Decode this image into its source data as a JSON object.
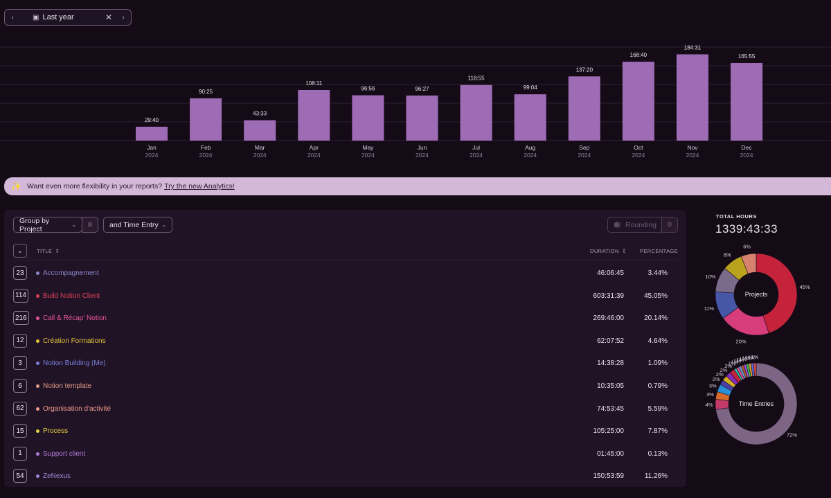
{
  "range_picker": {
    "prev_icon": "chevron-left-icon",
    "label": "Last year",
    "clear_icon": "close-icon",
    "next_icon": "chevron-right-icon"
  },
  "chart_data": {
    "type": "bar",
    "categories": [
      "Jan",
      "Feb",
      "Mar",
      "Apr",
      "May",
      "Jun",
      "Jul",
      "Aug",
      "Sep",
      "Oct",
      "Nov",
      "Dec"
    ],
    "years": [
      "2024",
      "2024",
      "2024",
      "2024",
      "2024",
      "2024",
      "2024",
      "2024",
      "2024",
      "2024",
      "2024",
      "2024"
    ],
    "value_labels": [
      "29:40",
      "90:25",
      "43:33",
      "108:11",
      "96:56",
      "96:27",
      "118:55",
      "99:04",
      "137:20",
      "168:40",
      "184:31",
      "165:55"
    ],
    "values": [
      29.67,
      90.42,
      43.55,
      108.18,
      96.93,
      96.45,
      118.92,
      99.07,
      137.33,
      168.67,
      184.52,
      165.92
    ],
    "ylim": [
      0,
      200
    ],
    "grid": true,
    "bar_color": "#9e6bb5"
  },
  "banner": {
    "icon": "sparkles-icon",
    "text": "Want even more flexibility in your reports?",
    "link": "Try the new Analytics!"
  },
  "controls": {
    "group_by": "Group by Project",
    "sub_group": "and Time Entry",
    "rounding": "Rounding"
  },
  "table": {
    "headers": {
      "title": "TITLE",
      "duration": "DURATION",
      "percentage": "PERCENTAGE"
    },
    "rows": [
      {
        "count": "23",
        "name": "Accompagnement",
        "duration": "46:06:45",
        "percentage": "3.44%",
        "color": "#8b86c9"
      },
      {
        "count": "114",
        "name": "Build Notion Client",
        "duration": "603:31:39",
        "percentage": "45.05%",
        "color": "#e0405a"
      },
      {
        "count": "216",
        "name": "Call & Récap' Notion",
        "duration": "269:46:00",
        "percentage": "20.14%",
        "color": "#e8559a"
      },
      {
        "count": "12",
        "name": "Création Formations",
        "duration": "62:07:52",
        "percentage": "4.64%",
        "color": "#e3c23a"
      },
      {
        "count": "3",
        "name": "Notion Building (Me)",
        "duration": "14:38:28",
        "percentage": "1.09%",
        "color": "#7b7fd9"
      },
      {
        "count": "6",
        "name": "Notion template",
        "duration": "10:35:05",
        "percentage": "0.79%",
        "color": "#e09a86"
      },
      {
        "count": "62",
        "name": "Organisation d'activité",
        "duration": "74:53:45",
        "percentage": "5.59%",
        "color": "#f09a8a"
      },
      {
        "count": "15",
        "name": "Process",
        "duration": "105:25:00",
        "percentage": "7.87%",
        "color": "#e6d040"
      },
      {
        "count": "1",
        "name": "Support client",
        "duration": "01:45:00",
        "percentage": "0.13%",
        "color": "#b07ad9"
      },
      {
        "count": "54",
        "name": "ZeNexus",
        "duration": "150:53:59",
        "percentage": "11.26%",
        "color": "#9a8ad6"
      }
    ]
  },
  "total": {
    "label": "TOTAL HOURS",
    "value": "1339:43:33"
  },
  "projects_donut": {
    "label": "Projects",
    "slices": [
      {
        "value": 45,
        "color": "#c4233b",
        "label": "45%"
      },
      {
        "value": 20,
        "color": "#d63d7a",
        "label": "20%"
      },
      {
        "value": 11,
        "color": "#4657a8",
        "label": "11%"
      },
      {
        "value": 10,
        "color": "#7a6b8a",
        "label": "10%"
      },
      {
        "value": 8,
        "color": "#b9a21e",
        "label": "8%"
      },
      {
        "value": 6,
        "color": "#d6816d",
        "label": "6%"
      }
    ]
  },
  "entries_donut": {
    "label": "Time Entries",
    "slices": [
      {
        "value": 72,
        "color": "#7d6585",
        "label": "72%"
      },
      {
        "value": 4,
        "color": "#c23a6a",
        "label": "4%"
      },
      {
        "value": 3,
        "color": "#d86a2a",
        "label": "3%"
      },
      {
        "value": 3,
        "color": "#2a8fd6",
        "label": "3%"
      },
      {
        "value": 2,
        "color": "#4a3fa8",
        "label": "2%"
      },
      {
        "value": 2,
        "color": "#d4b020",
        "label": "2%"
      },
      {
        "value": 2,
        "color": "#8a2ab8",
        "label": "2%"
      },
      {
        "value": 2,
        "color": "#c4233b",
        "label": "2%"
      },
      {
        "value": 1,
        "color": "#2ab8a0",
        "label": "1%"
      },
      {
        "value": 1,
        "color": "#e05090",
        "label": "1%"
      },
      {
        "value": 1,
        "color": "#6a9ad6",
        "label": "1%"
      },
      {
        "value": 1,
        "color": "#b85a2a",
        "label": "1%"
      },
      {
        "value": 1,
        "color": "#9a4ad6",
        "label": "1%"
      },
      {
        "value": 1,
        "color": "#3ab85a",
        "label": "1%"
      },
      {
        "value": 1,
        "color": "#d69a2a",
        "label": "1%"
      },
      {
        "value": 1,
        "color": "#5a6ad6",
        "label": "1%"
      },
      {
        "value": 1,
        "color": "#d64a4a",
        "label": "1%"
      }
    ]
  }
}
